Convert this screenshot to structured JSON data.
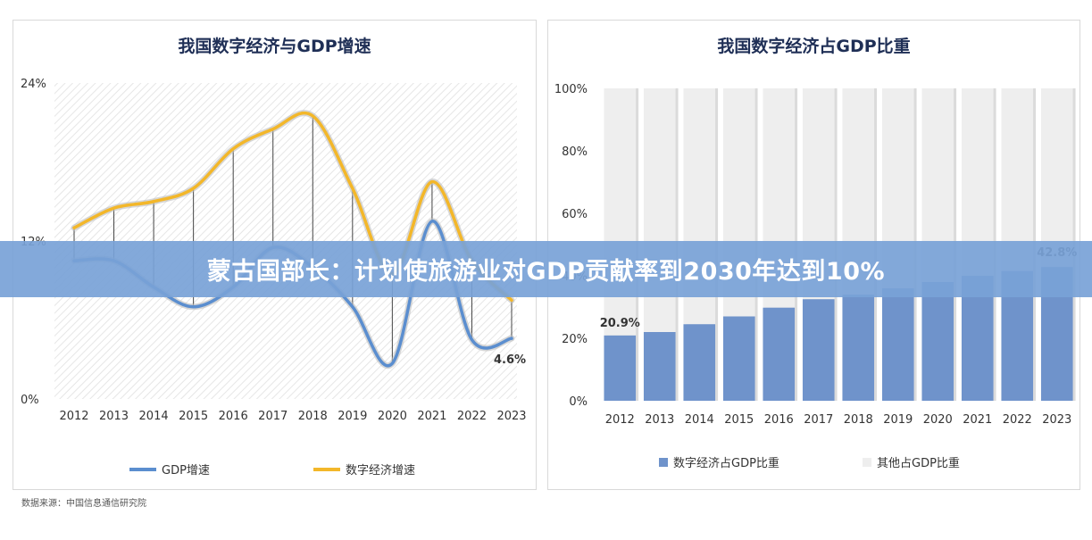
{
  "banner": {
    "headline": "蒙古国部长：计划使旅游业对GDP贡献率到2030年达到10%"
  },
  "source": "数据来源：中国信息通信研究院",
  "chart_data": [
    {
      "type": "line",
      "title": "我国数字经济与GDP增速",
      "x": [
        "2012",
        "2013",
        "2014",
        "2015",
        "2016",
        "2017",
        "2018",
        "2019",
        "2020",
        "2021",
        "2022",
        "2023"
      ],
      "ylim": [
        0,
        24
      ],
      "yticks": [
        "0%",
        "12%",
        "24%"
      ],
      "series": [
        {
          "name": "GDP增速",
          "color": "#5b8ecf",
          "values": [
            10.5,
            10.5,
            8.5,
            7.0,
            8.5,
            11.5,
            10.0,
            7.0,
            2.7,
            13.5,
            4.5,
            4.6
          ]
        },
        {
          "name": "数字经济增速",
          "color": "#f3b72a",
          "values": [
            13.0,
            14.5,
            15.0,
            16.0,
            19.0,
            20.5,
            21.5,
            16.0,
            9.5,
            16.5,
            10.5,
            7.5
          ]
        }
      ],
      "annotations": [
        {
          "text": "4.6%",
          "color": "#e02a2a"
        }
      ],
      "grid": false,
      "legend": "bottom"
    },
    {
      "type": "bar",
      "title": "我国数字经济占GDP比重",
      "categories": [
        "2012",
        "2013",
        "2014",
        "2015",
        "2016",
        "2017",
        "2018",
        "2019",
        "2020",
        "2021",
        "2022",
        "2023"
      ],
      "ylim": [
        0,
        100
      ],
      "yticks": [
        "0%",
        "20%",
        "40%",
        "60%",
        "80%",
        "100%"
      ],
      "series": [
        {
          "name": "数字经济占GDP比重",
          "color": "#6f93cb",
          "values": [
            20.9,
            22.0,
            24.5,
            27.0,
            29.8,
            32.5,
            34.0,
            36.0,
            38.0,
            40.0,
            41.5,
            42.8
          ]
        },
        {
          "name": "其他占GDP比重",
          "color": "#eeeeee",
          "values": [
            79.1,
            78.0,
            75.5,
            73.0,
            70.2,
            67.5,
            66.0,
            64.0,
            62.0,
            60.0,
            58.5,
            57.2
          ]
        }
      ],
      "annotations": [
        {
          "text": "20.9%",
          "color": "#e02a2a"
        },
        {
          "text": "42.8%",
          "color": "#8a6fb0"
        }
      ],
      "stacked": true,
      "legend": "bottom"
    }
  ]
}
